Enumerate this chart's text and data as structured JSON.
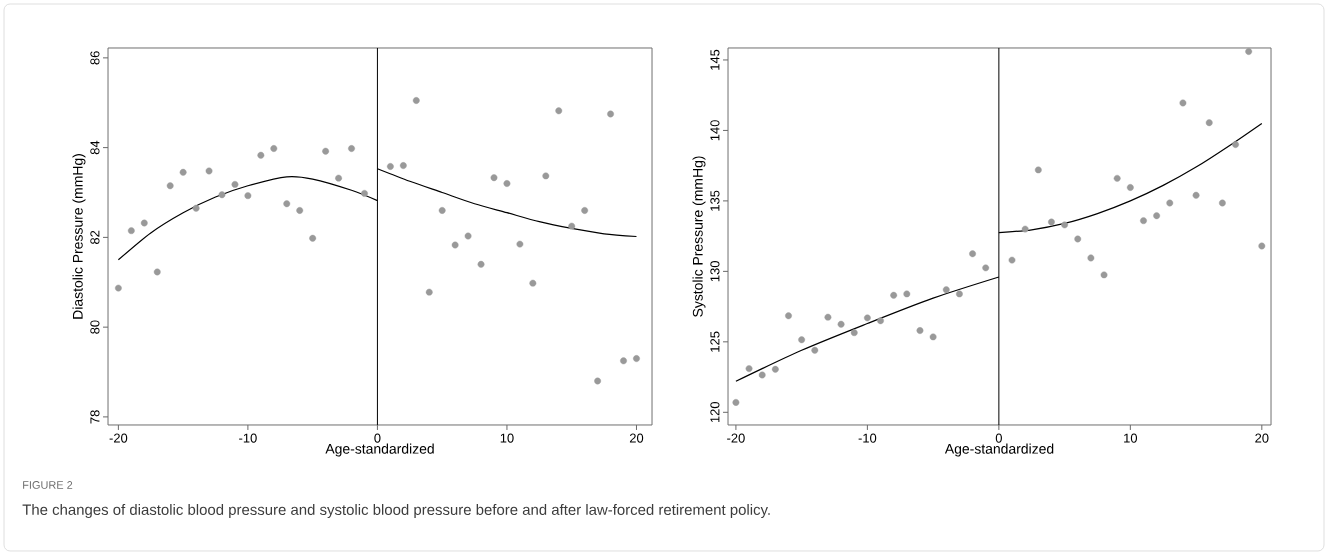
{
  "chart_data": [
    {
      "type": "scatter",
      "xlabel": "Age-standardized",
      "ylabel": "Diastolic Pressure (mmHg)",
      "xlim": [
        -20.8,
        21.2
      ],
      "ylim": [
        77.82,
        86.22
      ],
      "xticks": [
        -20,
        -10,
        0,
        10,
        20
      ],
      "yticks": [
        78,
        80,
        82,
        84,
        86
      ],
      "marker": "circle",
      "series": [
        {
          "color": "#999999",
          "x": [
            -20,
            -19,
            -18,
            -17,
            -16,
            -15,
            -14,
            -13,
            -12,
            -11,
            -10,
            -9,
            -8,
            -7,
            -6,
            -5,
            -4,
            -3,
            -2,
            -1,
            1,
            2,
            3,
            4,
            5,
            6,
            7,
            8,
            9,
            10,
            11,
            12,
            13,
            14,
            15,
            16,
            17,
            18,
            19,
            20
          ],
          "values": [
            80.87,
            82.15,
            82.32,
            81.23,
            83.15,
            83.45,
            82.65,
            83.48,
            82.95,
            83.18,
            82.93,
            83.83,
            83.98,
            82.75,
            82.6,
            81.98,
            83.92,
            83.32,
            83.98,
            82.98,
            83.58,
            83.6,
            85.05,
            80.78,
            82.6,
            81.83,
            82.03,
            81.4,
            83.33,
            83.2,
            81.85,
            80.98,
            83.37,
            84.82,
            82.25,
            82.6,
            78.8,
            84.75,
            79.25,
            79.3
          ]
        },
        {
          "type": "line",
          "marker": "none",
          "color": "#000000",
          "x": [
            -20,
            -17.5,
            -15,
            -12.5,
            -10,
            -7,
            -5,
            -2,
            0
          ],
          "values": [
            81.5,
            82.1,
            82.55,
            82.9,
            83.15,
            83.35,
            83.3,
            83.05,
            82.82
          ]
        },
        {
          "type": "line",
          "marker": "none",
          "color": "#000000",
          "x": [
            0,
            2.5,
            5,
            7.5,
            10,
            12.5,
            15,
            17.5,
            20
          ],
          "values": [
            83.53,
            83.25,
            83.0,
            82.75,
            82.55,
            82.35,
            82.2,
            82.08,
            82.02
          ]
        }
      ],
      "ref_lines": [
        {
          "axis": "x",
          "value": 0,
          "color": "#000000"
        }
      ],
      "annotations": [
        "FIGURE 2",
        "The changes of diastolic blood pressure and systolic blood pressure before and after law-forced retirement policy."
      ]
    },
    {
      "type": "scatter",
      "xlabel": "Age-standardized",
      "ylabel": "Systolic Pressure (mmHg)",
      "xlim": [
        -20.6,
        20.7
      ],
      "ylim": [
        119.1,
        145.85
      ],
      "xticks": [
        -20,
        -10,
        0,
        10,
        20
      ],
      "yticks": [
        120,
        125,
        130,
        135,
        140,
        145
      ],
      "marker": "circle",
      "series": [
        {
          "color": "#999999",
          "x": [
            -20,
            -19,
            -18,
            -17,
            -16,
            -15,
            -14,
            -13,
            -12,
            -11,
            -10,
            -9,
            -8,
            -7,
            -6,
            -5,
            -4,
            -3,
            -2,
            -1,
            1,
            2,
            3,
            4,
            5,
            6,
            7,
            8,
            9,
            10,
            11,
            12,
            13,
            14,
            15,
            16,
            17,
            18,
            19,
            20
          ],
          "values": [
            120.7,
            123.1,
            122.65,
            123.05,
            126.85,
            125.15,
            124.4,
            126.75,
            126.25,
            125.65,
            126.7,
            126.5,
            128.3,
            128.4,
            125.8,
            125.35,
            128.7,
            128.4,
            131.25,
            130.25,
            130.8,
            133.0,
            137.2,
            133.5,
            133.3,
            132.3,
            130.95,
            129.75,
            136.6,
            135.95,
            133.6,
            133.95,
            134.85,
            141.95,
            135.4,
            140.55,
            134.85,
            139.0,
            145.6,
            131.8
          ]
        },
        {
          "type": "line",
          "marker": "none",
          "color": "#000000",
          "x": [
            -20,
            -15,
            -10,
            -5,
            0
          ],
          "values": [
            122.2,
            124.4,
            126.3,
            128.1,
            129.6
          ]
        },
        {
          "type": "line",
          "marker": "none",
          "color": "#000000",
          "x": [
            0,
            2.5,
            5,
            7.5,
            10,
            12.5,
            15,
            17.5,
            20
          ],
          "values": [
            132.75,
            132.95,
            133.4,
            134.1,
            135.0,
            136.1,
            137.4,
            138.9,
            140.5
          ]
        }
      ],
      "ref_lines": [
        {
          "axis": "x",
          "value": 0,
          "color": "#000000"
        }
      ]
    }
  ]
}
